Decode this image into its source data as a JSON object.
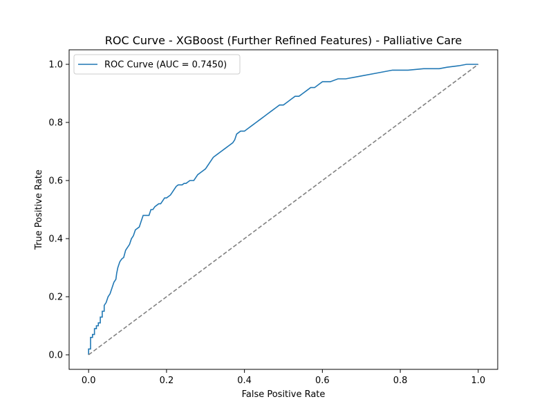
{
  "chart_data": {
    "type": "line",
    "title": "ROC Curve - XGBoost (Further Refined Features) - Palliative Care",
    "xlabel": "False Positive Rate",
    "ylabel": "True Positive Rate",
    "xlim": [
      -0.05,
      1.05
    ],
    "ylim": [
      -0.05,
      1.05
    ],
    "xticks": [
      0.0,
      0.2,
      0.4,
      0.6,
      0.8,
      1.0
    ],
    "yticks": [
      0.0,
      0.2,
      0.4,
      0.6,
      0.8,
      1.0
    ],
    "xtick_labels": [
      "0.0",
      "0.2",
      "0.4",
      "0.6",
      "0.8",
      "1.0"
    ],
    "ytick_labels": [
      "0.0",
      "0.2",
      "0.4",
      "0.6",
      "0.8",
      "1.0"
    ],
    "grid": false,
    "legend_position": "top-left",
    "series": [
      {
        "name": "ROC Curve (AUC = 0.7450)",
        "color": "#1f77b4",
        "style": "solid",
        "x": [
          0.0,
          0.0,
          0.005,
          0.005,
          0.01,
          0.01,
          0.015,
          0.015,
          0.02,
          0.02,
          0.025,
          0.025,
          0.03,
          0.03,
          0.035,
          0.035,
          0.04,
          0.04,
          0.045,
          0.05,
          0.055,
          0.06,
          0.065,
          0.07,
          0.072,
          0.075,
          0.08,
          0.085,
          0.09,
          0.095,
          0.1,
          0.105,
          0.11,
          0.115,
          0.12,
          0.13,
          0.135,
          0.14,
          0.15,
          0.155,
          0.16,
          0.165,
          0.17,
          0.18,
          0.185,
          0.19,
          0.195,
          0.2,
          0.21,
          0.215,
          0.22,
          0.225,
          0.23,
          0.24,
          0.245,
          0.25,
          0.26,
          0.27,
          0.28,
          0.29,
          0.3,
          0.305,
          0.31,
          0.32,
          0.33,
          0.34,
          0.35,
          0.36,
          0.37,
          0.375,
          0.38,
          0.39,
          0.4,
          0.41,
          0.42,
          0.43,
          0.44,
          0.45,
          0.46,
          0.47,
          0.48,
          0.49,
          0.5,
          0.51,
          0.52,
          0.53,
          0.54,
          0.55,
          0.56,
          0.57,
          0.58,
          0.59,
          0.6,
          0.62,
          0.64,
          0.66,
          0.7,
          0.74,
          0.78,
          0.82,
          0.86,
          0.9,
          0.92,
          0.95,
          0.97,
          0.99,
          1.0
        ],
        "y": [
          0.0,
          0.02,
          0.02,
          0.06,
          0.06,
          0.07,
          0.07,
          0.09,
          0.09,
          0.1,
          0.1,
          0.11,
          0.11,
          0.13,
          0.13,
          0.15,
          0.15,
          0.17,
          0.18,
          0.2,
          0.21,
          0.23,
          0.25,
          0.26,
          0.28,
          0.3,
          0.32,
          0.33,
          0.335,
          0.36,
          0.37,
          0.38,
          0.4,
          0.41,
          0.43,
          0.44,
          0.46,
          0.48,
          0.48,
          0.48,
          0.5,
          0.5,
          0.51,
          0.52,
          0.52,
          0.53,
          0.54,
          0.54,
          0.55,
          0.56,
          0.57,
          0.58,
          0.585,
          0.585,
          0.59,
          0.59,
          0.6,
          0.6,
          0.62,
          0.63,
          0.64,
          0.65,
          0.66,
          0.68,
          0.69,
          0.7,
          0.71,
          0.72,
          0.73,
          0.74,
          0.76,
          0.77,
          0.77,
          0.78,
          0.79,
          0.8,
          0.81,
          0.82,
          0.83,
          0.84,
          0.85,
          0.86,
          0.86,
          0.87,
          0.88,
          0.89,
          0.89,
          0.9,
          0.91,
          0.92,
          0.92,
          0.93,
          0.94,
          0.94,
          0.95,
          0.95,
          0.96,
          0.97,
          0.98,
          0.98,
          0.985,
          0.985,
          0.99,
          0.995,
          1.0,
          1.0,
          1.0
        ]
      },
      {
        "color": "#808080",
        "style": "dashed",
        "x": [
          0.0,
          1.0
        ],
        "y": [
          0.0,
          1.0
        ]
      }
    ]
  }
}
